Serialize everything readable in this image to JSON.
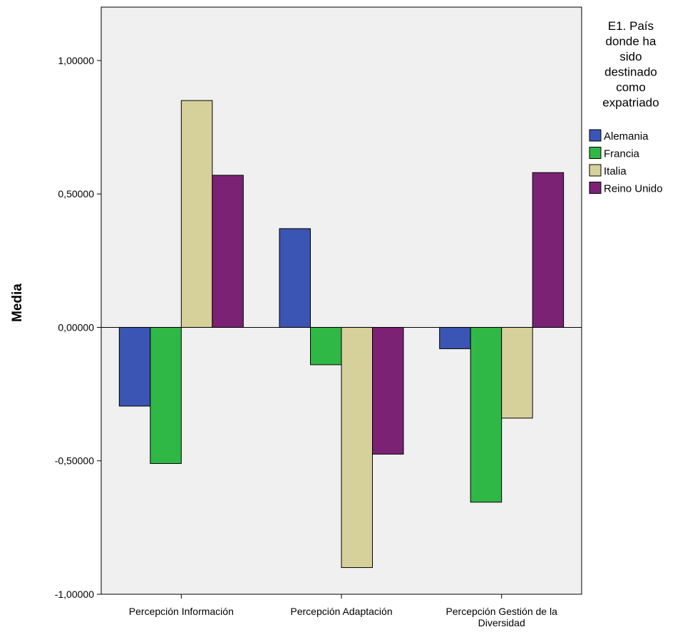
{
  "chart_data": {
    "type": "bar",
    "title": "",
    "xlabel": "",
    "ylabel": "Media",
    "ylim": [
      -1.0,
      1.2
    ],
    "yticks": [
      -1.0,
      -0.5,
      0.0,
      0.5,
      1.0
    ],
    "ytick_labels": [
      "-1,00000",
      "-0,50000",
      "0,00000",
      "0,50000",
      "1,00000"
    ],
    "categories": [
      "Percepción Información",
      "Percepción Adaptación",
      "Percepción Gestión de la Diversidad"
    ],
    "category_label_lines": [
      [
        "Percepción Información"
      ],
      [
        "Percepción Adaptación"
      ],
      [
        "Percepción Gestión de la",
        "Diversidad"
      ]
    ],
    "series": [
      {
        "name": "Alemania",
        "color": "#3a55b3",
        "values": [
          -0.295,
          0.37,
          -0.08
        ]
      },
      {
        "name": "Francia",
        "color": "#2fb845",
        "values": [
          -0.51,
          -0.14,
          -0.655
        ]
      },
      {
        "name": "Italia",
        "color": "#d6d19a",
        "values": [
          0.85,
          -0.9,
          -0.34
        ]
      },
      {
        "name": "Reino Unido",
        "color": "#7b2275",
        "values": [
          0.57,
          -0.475,
          0.58
        ]
      }
    ],
    "legend": {
      "title_lines": [
        "E1. País",
        "donde ha",
        "sido",
        "destinado",
        "como",
        "expatriado"
      ],
      "position": "right"
    },
    "grid": false,
    "plot_background": "#f0f0f0"
  }
}
